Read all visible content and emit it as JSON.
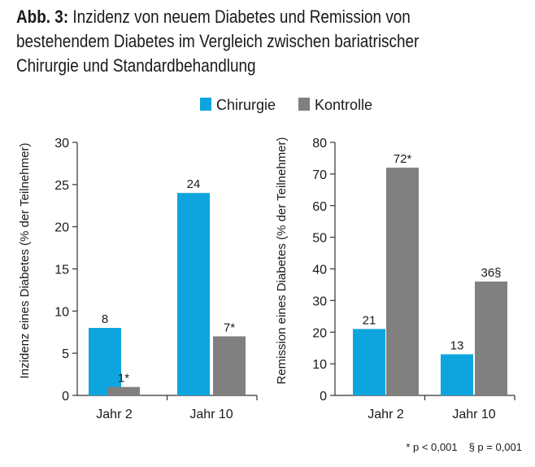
{
  "title": {
    "label": "Abb. 3:",
    "text": "Inzidenz von neuem Diabetes und Remission von bestehendem Diabetes im Vergleich zwischen bariatrischer Chirurgie und Standardbehandlung"
  },
  "colors": {
    "chirurgie": "#0ea5df",
    "kontrolle": "#808080",
    "axis": "#333333"
  },
  "legend": [
    {
      "name": "Chirurgie",
      "color_key": "chirurgie"
    },
    {
      "name": "Kontrolle",
      "color_key": "kontrolle"
    }
  ],
  "chart_data": [
    {
      "type": "bar",
      "ylabel": "Inzidenz eines Diabetes (% der Teilnehmer)",
      "ylim": [
        0,
        30
      ],
      "yticks": [
        0,
        5,
        10,
        15,
        20,
        25,
        30
      ],
      "categories": [
        "Jahr 2",
        "Jahr 10"
      ],
      "series": [
        {
          "name": "Chirurgie",
          "values": [
            8,
            24
          ],
          "labels": [
            "8",
            "24"
          ]
        },
        {
          "name": "Kontrolle",
          "values": [
            1,
            7
          ],
          "labels": [
            "1*",
            "7*"
          ]
        }
      ]
    },
    {
      "type": "bar",
      "ylabel": "Remission eines Diabetes (% der Teilnehmer)",
      "ylim": [
        0,
        80
      ],
      "yticks": [
        0,
        10,
        20,
        30,
        40,
        50,
        60,
        70,
        80
      ],
      "categories": [
        "Jahr 2",
        "Jahr 10"
      ],
      "series": [
        {
          "name": "Chirurgie",
          "values": [
            21,
            13
          ],
          "labels": [
            "21",
            "13"
          ]
        },
        {
          "name": "Kontrolle",
          "values": [
            72,
            36
          ],
          "labels": [
            "72*",
            "36§"
          ]
        }
      ]
    }
  ],
  "footnotes": [
    "* p < 0,001",
    "§ p = 0,001"
  ]
}
